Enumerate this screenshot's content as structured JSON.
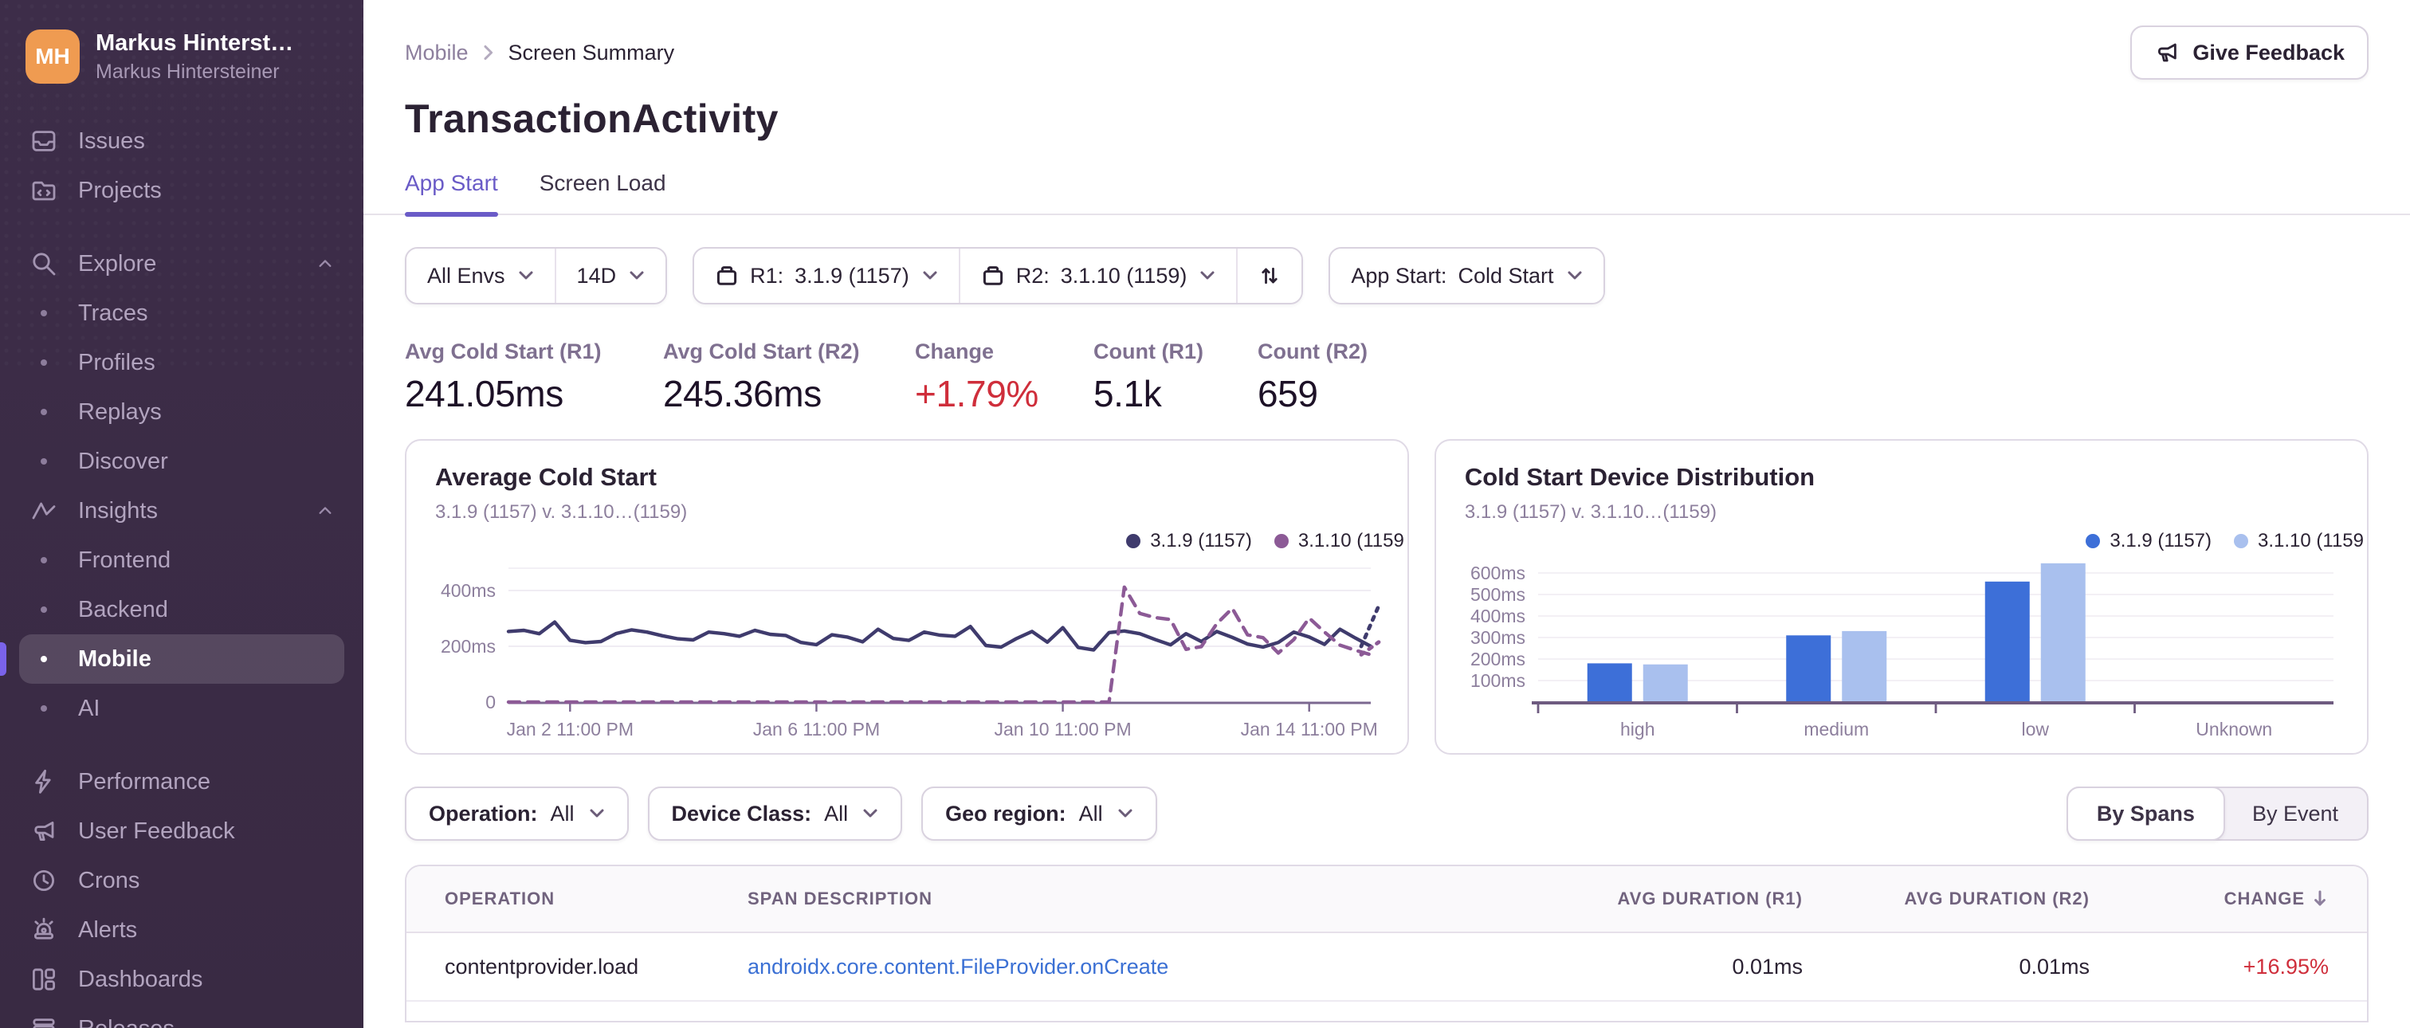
{
  "colors": {
    "accent": "#6a5bc7",
    "sidebar_bg": "#3b2c45",
    "red": "#cf2e3b",
    "link": "#3b70d4",
    "line_r1": "#3f3b6d",
    "line_r2": "#8c5a96",
    "bar_r1": "#3d6fd8",
    "bar_r2": "#a9c0ee"
  },
  "sidebar": {
    "user": {
      "initials": "MH",
      "name": "Markus Hinterst…",
      "org": "Markus Hintersteiner"
    },
    "items": [
      {
        "label": "Issues",
        "icon": "issues-icon"
      },
      {
        "label": "Projects",
        "icon": "projects-icon"
      },
      {
        "label": "Explore",
        "icon": "search-icon",
        "chevron": true,
        "gap": true
      },
      {
        "label": "Traces",
        "sub": true
      },
      {
        "label": "Profiles",
        "sub": true
      },
      {
        "label": "Replays",
        "sub": true
      },
      {
        "label": "Discover",
        "sub": true
      },
      {
        "label": "Insights",
        "icon": "insights-icon",
        "chevron": true
      },
      {
        "label": "Frontend",
        "sub": true
      },
      {
        "label": "Backend",
        "sub": true
      },
      {
        "label": "Mobile",
        "sub": true,
        "active": true
      },
      {
        "label": "AI",
        "sub": true
      },
      {
        "label": "Performance",
        "icon": "performance-icon",
        "gap": true
      },
      {
        "label": "User Feedback",
        "icon": "megaphone-icon"
      },
      {
        "label": "Crons",
        "icon": "crons-icon"
      },
      {
        "label": "Alerts",
        "icon": "alerts-icon"
      },
      {
        "label": "Dashboards",
        "icon": "dashboards-icon"
      },
      {
        "label": "Releases",
        "icon": "releases-icon"
      }
    ]
  },
  "header": {
    "breadcrumb": {
      "first": "Mobile",
      "current": "Screen Summary"
    },
    "title": "TransactionActivity",
    "feedback_button": "Give Feedback",
    "tabs": [
      {
        "label": "App Start",
        "active": true
      },
      {
        "label": "Screen Load",
        "active": false
      }
    ]
  },
  "filters": {
    "env": {
      "label": "All Envs"
    },
    "date": {
      "label": "14D"
    },
    "r1": {
      "label": "R1:",
      "value": "3.1.9 (1157)"
    },
    "r2": {
      "label": "R2:",
      "value": "3.1.10 (1159)"
    },
    "primary": {
      "label": "App Start:",
      "value": "Cold Start"
    },
    "operation": {
      "label": "Operation:",
      "value": "All"
    },
    "device_class": {
      "label": "Device Class:",
      "value": "All"
    },
    "geo_region": {
      "label": "Geo region:",
      "value": "All"
    },
    "view_toggle": {
      "active": "By Spans",
      "inactive": "By Event"
    }
  },
  "stats": [
    {
      "label": "Avg Cold Start (R1)",
      "value": "241.05ms"
    },
    {
      "label": "Avg Cold Start (R2)",
      "value": "245.36ms"
    },
    {
      "label": "Change",
      "value": "+1.79%",
      "negative": true
    },
    {
      "label": "Count (R1)",
      "value": "5.1k"
    },
    {
      "label": "Count (R2)",
      "value": "659"
    }
  ],
  "chart_data": [
    {
      "id": "average-cold-start",
      "type": "line",
      "title": "Average Cold Start",
      "subtitle": "3.1.9 (1157) v. 3.1.10…(1159)",
      "legend": [
        {
          "name": "3.1.9 (1157)",
          "color": "#3f3b6d"
        },
        {
          "name": "3.1.10 (1159",
          "color": "#8c5a96"
        }
      ],
      "y_unit": "ms",
      "ylim": [
        0,
        500
      ],
      "y_ticks": [
        0,
        200,
        400
      ],
      "x_tick_labels": [
        "Jan 2 11:00 PM",
        "Jan 6 11:00 PM",
        "Jan 10 11:00 PM",
        "Jan 14 11:00 PM"
      ],
      "x_tick_points": [
        4,
        20,
        36,
        52
      ],
      "series": [
        {
          "name": "3.1.9 (1157)",
          "color": "#3f3b6d",
          "style": "solid",
          "tail": 345,
          "values": [
            253,
            257,
            245,
            287,
            222,
            213,
            217,
            246,
            259,
            251,
            238,
            227,
            223,
            251,
            245,
            236,
            257,
            243,
            239,
            214,
            206,
            241,
            233,
            216,
            261,
            228,
            221,
            251,
            240,
            236,
            271,
            203,
            197,
            228,
            253,
            215,
            267,
            196,
            187,
            249,
            255,
            245,
            224,
            205,
            245,
            217,
            253,
            232,
            208,
            197,
            214,
            251,
            233,
            207,
            261,
            230,
            200
          ]
        },
        {
          "name": "3.1.10 (1159)",
          "color": "#8c5a96",
          "style": "dashed",
          "tail": 215,
          "values": [
            0,
            0,
            0,
            0,
            0,
            0,
            0,
            0,
            0,
            0,
            0,
            0,
            0,
            0,
            0,
            0,
            0,
            0,
            0,
            0,
            0,
            0,
            0,
            0,
            0,
            0,
            0,
            0,
            0,
            0,
            0,
            0,
            0,
            0,
            0,
            0,
            0,
            0,
            0,
            0,
            412,
            318,
            303,
            296,
            189,
            199,
            281,
            336,
            241,
            231,
            176,
            224,
            301,
            251,
            204,
            186,
            170
          ]
        }
      ]
    },
    {
      "id": "cold-start-device-distribution",
      "type": "bar",
      "title": "Cold Start Device Distribution",
      "subtitle": "3.1.9 (1157) v. 3.1.10…(1159)",
      "legend": [
        {
          "name": "3.1.9 (1157)",
          "color": "#3d6fd8"
        },
        {
          "name": "3.1.10 (1159",
          "color": "#a9c0ee"
        }
      ],
      "y_unit": "ms",
      "ylim": [
        0,
        700
      ],
      "y_ticks": [
        100,
        200,
        300,
        400,
        500,
        600
      ],
      "categories": [
        "high",
        "medium",
        "low",
        "Unknown"
      ],
      "series": [
        {
          "name": "3.1.9 (1157)",
          "color": "#3d6fd8",
          "values": [
            180,
            310,
            560,
            0
          ]
        },
        {
          "name": "3.1.10 (1159)",
          "color": "#a9c0ee",
          "values": [
            175,
            330,
            645,
            0
          ]
        }
      ]
    }
  ],
  "table": {
    "headers": [
      "OPERATION",
      "SPAN DESCRIPTION",
      "AVG DURATION (R1)",
      "AVG DURATION (R2)",
      "CHANGE"
    ],
    "rows": [
      {
        "operation": "contentprovider.load",
        "span": "androidx.core.content.FileProvider.onCreate",
        "avg_r1": "0.01ms",
        "avg_r2": "0.01ms",
        "change": "+16.95%",
        "change_negative": true
      }
    ]
  }
}
